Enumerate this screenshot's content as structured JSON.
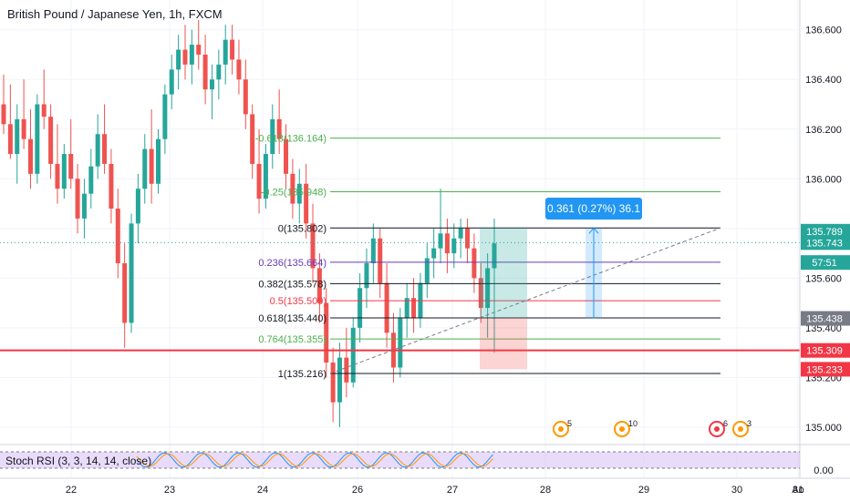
{
  "header": {
    "symbol_title": "British Pound / Japanese Yen, 1h, FXCM"
  },
  "chart_data": {
    "type": "candlestick",
    "title": "British Pound / Japanese Yen, 1h, FXCM",
    "ylim": [
      134.93,
      136.72
    ],
    "y_ticks": [
      "136.600",
      "136.400",
      "136.200",
      "136.000",
      "135.800",
      "135.600",
      "135.400",
      "135.200",
      "135.000"
    ],
    "y_tick_values": [
      136.6,
      136.4,
      136.2,
      136.0,
      135.8,
      135.6,
      135.4,
      135.2,
      135.0
    ],
    "x_labels": [
      "22",
      "23",
      "24",
      "26",
      "27",
      "28",
      "29",
      "30",
      "31",
      "Ao"
    ],
    "price_tags": [
      {
        "label": "135.789",
        "value": 135.789,
        "color": "#26a69a"
      },
      {
        "label": "135.743",
        "value": 135.743,
        "color": "#26a69a"
      },
      {
        "label": "57:51",
        "value": 135.663,
        "color": "#26a69a"
      },
      {
        "label": "135.438",
        "value": 135.438,
        "color": "#787b86"
      },
      {
        "label": "135.309",
        "value": 135.309,
        "color": "#f23645"
      },
      {
        "label": "135.233",
        "value": 135.233,
        "color": "#f23645"
      }
    ],
    "fib_levels": [
      {
        "label": "-0.618(136.164)",
        "value": 136.164,
        "color": "#4caf50"
      },
      {
        "label": "-0.25(135.948)",
        "value": 135.948,
        "color": "#4caf50"
      },
      {
        "label": "0(135.802)",
        "value": 135.802,
        "color": "#131722"
      },
      {
        "label": "0.236(135.664)",
        "value": 135.664,
        "color": "#673ab7"
      },
      {
        "label": "0.382(135.578)",
        "value": 135.578,
        "color": "#131722"
      },
      {
        "label": "0.5(135.509)",
        "value": 135.509,
        "color": "#f23645"
      },
      {
        "label": "0.618(135.440)",
        "value": 135.44,
        "color": "#131722"
      },
      {
        "label": "0.764(135.355)",
        "value": 135.355,
        "color": "#4caf50"
      },
      {
        "label": "1(135.216)",
        "value": 135.216,
        "color": "#131722"
      }
    ],
    "horizontal_line": {
      "value": 135.309,
      "color": "#f23645"
    },
    "measure_label": "0.361 (0.27%) 36.1",
    "event_markers": [
      "5",
      "10",
      "6",
      "3"
    ],
    "indicator": {
      "label": "Stoch RSI (3, 3, 14, 14, close)",
      "ticks": [
        "0.00"
      ]
    },
    "candles": [
      [
        136.3,
        136.42,
        136.18,
        136.22
      ],
      [
        136.22,
        136.38,
        136.08,
        136.1
      ],
      [
        136.1,
        136.3,
        135.98,
        136.24
      ],
      [
        136.24,
        136.4,
        136.12,
        136.16
      ],
      [
        136.16,
        136.28,
        135.96,
        136.02
      ],
      [
        136.02,
        136.34,
        135.98,
        136.3
      ],
      [
        136.3,
        136.44,
        136.2,
        136.25
      ],
      [
        136.25,
        136.3,
        136.0,
        136.06
      ],
      [
        136.06,
        136.22,
        135.9,
        135.96
      ],
      [
        135.96,
        136.14,
        135.92,
        136.1
      ],
      [
        136.1,
        136.24,
        135.96,
        136.0
      ],
      [
        136.0,
        136.06,
        135.78,
        135.84
      ],
      [
        135.84,
        136.0,
        135.76,
        135.94
      ],
      [
        135.94,
        136.12,
        135.88,
        136.05
      ],
      [
        136.05,
        136.26,
        136.0,
        136.18
      ],
      [
        136.18,
        136.3,
        136.02,
        136.06
      ],
      [
        136.06,
        136.12,
        135.82,
        135.88
      ],
      [
        135.88,
        135.96,
        135.6,
        135.66
      ],
      [
        135.66,
        135.74,
        135.32,
        135.42
      ],
      [
        135.42,
        135.86,
        135.38,
        135.82
      ],
      [
        135.82,
        136.02,
        135.74,
        135.96
      ],
      [
        135.96,
        136.18,
        135.9,
        136.12
      ],
      [
        136.12,
        136.28,
        135.9,
        135.98
      ],
      [
        135.98,
        136.2,
        135.94,
        136.16
      ],
      [
        136.16,
        136.38,
        136.1,
        136.34
      ],
      [
        136.34,
        136.5,
        136.28,
        136.44
      ],
      [
        136.44,
        136.58,
        136.36,
        136.52
      ],
      [
        136.52,
        136.62,
        136.4,
        136.46
      ],
      [
        136.46,
        136.6,
        136.38,
        136.54
      ],
      [
        136.54,
        136.64,
        136.44,
        136.5
      ],
      [
        136.5,
        136.58,
        136.3,
        136.36
      ],
      [
        136.36,
        136.46,
        136.24,
        136.4
      ],
      [
        136.4,
        136.52,
        136.32,
        136.46
      ],
      [
        136.46,
        136.62,
        136.38,
        136.56
      ],
      [
        136.56,
        136.62,
        136.42,
        136.48
      ],
      [
        136.48,
        136.56,
        136.34,
        136.4
      ],
      [
        136.4,
        136.48,
        136.2,
        136.26
      ],
      [
        136.26,
        136.3,
        136.0,
        136.06
      ],
      [
        136.06,
        136.2,
        135.86,
        135.92
      ],
      [
        135.92,
        136.14,
        135.88,
        136.1
      ],
      [
        136.1,
        136.3,
        136.04,
        136.24
      ],
      [
        136.24,
        136.36,
        136.1,
        136.16
      ],
      [
        136.16,
        136.22,
        135.96,
        136.02
      ],
      [
        136.02,
        136.08,
        135.84,
        135.9
      ],
      [
        135.9,
        136.04,
        135.82,
        135.98
      ],
      [
        135.98,
        136.06,
        135.76,
        135.82
      ],
      [
        135.82,
        135.9,
        135.58,
        135.64
      ],
      [
        135.64,
        135.7,
        135.42,
        135.5
      ],
      [
        135.5,
        135.56,
        135.2,
        135.26
      ],
      [
        135.26,
        135.32,
        135.02,
        135.1
      ],
      [
        135.1,
        135.34,
        135.0,
        135.28
      ],
      [
        135.28,
        135.4,
        135.12,
        135.18
      ],
      [
        135.18,
        135.44,
        135.16,
        135.4
      ],
      [
        135.4,
        135.62,
        135.34,
        135.56
      ],
      [
        135.56,
        135.72,
        135.48,
        135.66
      ],
      [
        135.66,
        135.82,
        135.58,
        135.76
      ],
      [
        135.76,
        135.8,
        135.52,
        135.58
      ],
      [
        135.58,
        135.66,
        135.32,
        135.38
      ],
      [
        135.38,
        135.46,
        135.18,
        135.24
      ],
      [
        135.24,
        135.48,
        135.2,
        135.44
      ],
      [
        135.44,
        135.58,
        135.36,
        135.52
      ],
      [
        135.52,
        135.6,
        135.38,
        135.44
      ],
      [
        135.44,
        135.62,
        135.4,
        135.58
      ],
      [
        135.58,
        135.74,
        135.52,
        135.68
      ],
      [
        135.68,
        135.8,
        135.6,
        135.72
      ],
      [
        135.72,
        135.96,
        135.66,
        135.78
      ],
      [
        135.78,
        135.84,
        135.62,
        135.7
      ],
      [
        135.7,
        135.82,
        135.64,
        135.76
      ],
      [
        135.76,
        135.84,
        135.68,
        135.8
      ],
      [
        135.8,
        135.84,
        135.66,
        135.72
      ],
      [
        135.72,
        135.78,
        135.54,
        135.6
      ],
      [
        135.6,
        135.66,
        135.42,
        135.48
      ],
      [
        135.48,
        135.7,
        135.36,
        135.64
      ],
      [
        135.64,
        135.84,
        135.3,
        135.74
      ]
    ]
  }
}
